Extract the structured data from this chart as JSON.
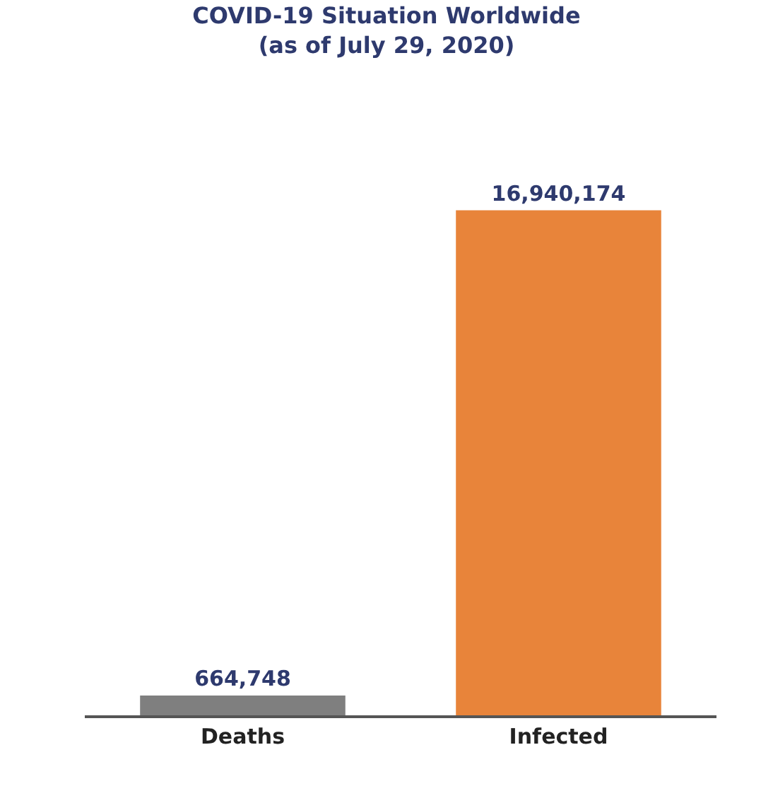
{
  "chart_data": {
    "type": "bar",
    "title": "COVID-19 Situation Worldwide\n(as of July 29, 2020)",
    "categories": [
      "Deaths",
      "Infected"
    ],
    "values": [
      664748,
      16940174
    ],
    "colors": [
      "#7f7f7f",
      "#e8843a"
    ],
    "value_labels": [
      "664,748",
      "16,940,174"
    ]
  }
}
